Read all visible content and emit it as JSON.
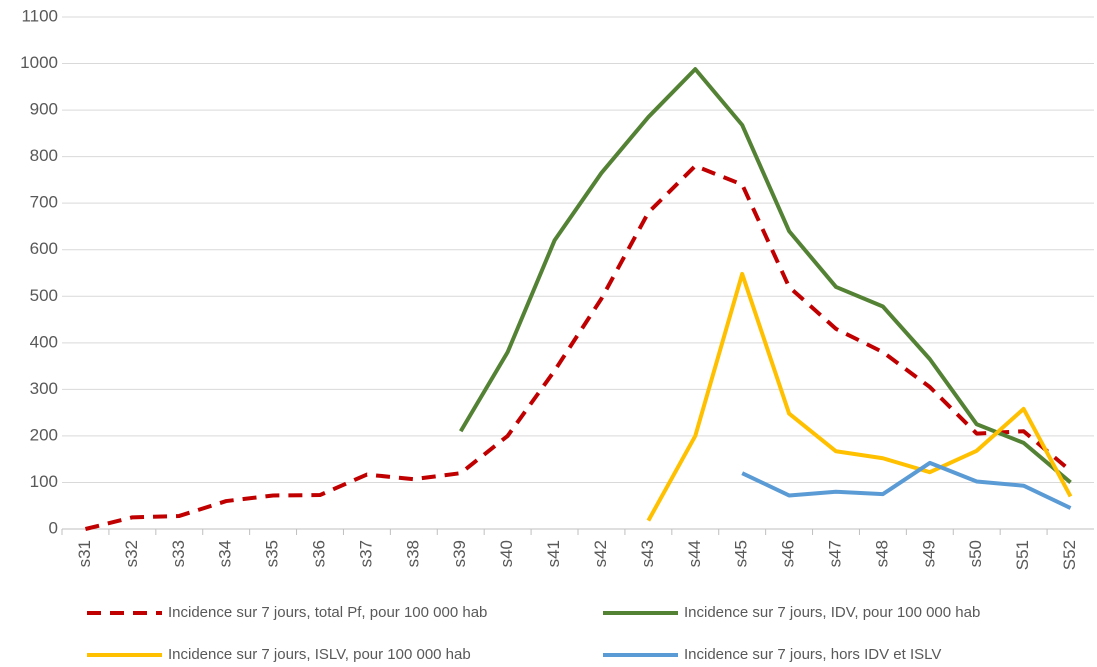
{
  "chart_data": {
    "type": "line",
    "categories": [
      "s31",
      "s32",
      "s33",
      "s34",
      "s35",
      "s36",
      "s37",
      "s38",
      "s39",
      "s40",
      "s41",
      "s42",
      "s43",
      "s44",
      "s45",
      "s46",
      "s47",
      "s48",
      "s49",
      "s50",
      "S51",
      "S52"
    ],
    "series": [
      {
        "name": "Incidence sur 7 jours, total Pf, pour 100 000 hab",
        "color": "#c00000",
        "dashed": true,
        "values": [
          0,
          25,
          28,
          60,
          72,
          73,
          117,
          107,
          120,
          200,
          340,
          495,
          680,
          780,
          740,
          520,
          430,
          380,
          305,
          205,
          210,
          125
        ]
      },
      {
        "name": "Incidence sur 7 jours, IDV, pour 100 000 hab",
        "color": "#548235",
        "dashed": false,
        "values": [
          null,
          null,
          null,
          null,
          null,
          null,
          null,
          null,
          210,
          380,
          620,
          765,
          885,
          988,
          868,
          640,
          520,
          478,
          365,
          225,
          185,
          100
        ]
      },
      {
        "name": "Incidence sur 7 jours, ISLV, pour 100 000 hab",
        "color": "#ffc000",
        "dashed": false,
        "values": [
          null,
          null,
          null,
          null,
          null,
          null,
          null,
          null,
          null,
          null,
          null,
          null,
          18,
          200,
          548,
          248,
          167,
          152,
          122,
          168,
          258,
          70
        ]
      },
      {
        "name": "Incidence sur 7 jours, hors IDV et ISLV",
        "color": "#5b9bd5",
        "dashed": false,
        "values": [
          null,
          null,
          null,
          null,
          null,
          null,
          null,
          null,
          null,
          null,
          null,
          null,
          null,
          null,
          120,
          72,
          80,
          75,
          142,
          102,
          93,
          45
        ]
      }
    ],
    "ylim": [
      0,
      1100
    ],
    "yticks": [
      0,
      100,
      200,
      300,
      400,
      500,
      600,
      700,
      800,
      900,
      1000,
      1100
    ],
    "grid": true
  }
}
